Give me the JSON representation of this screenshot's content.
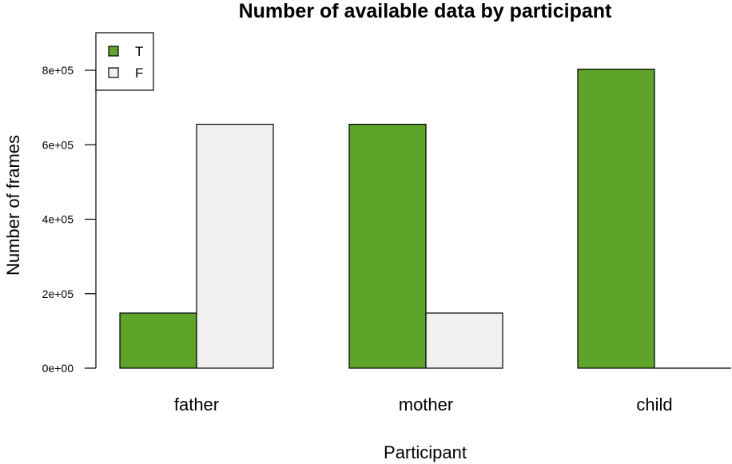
{
  "chart_data": {
    "type": "bar",
    "title": "Number of available data by participant",
    "xlabel": "Participant",
    "ylabel": "Number of frames",
    "categories": [
      "father",
      "mother",
      "child"
    ],
    "series": [
      {
        "name": "T",
        "values": [
          148000,
          655000,
          803000
        ],
        "color": "#5ea32a"
      },
      {
        "name": "F",
        "values": [
          655000,
          148000,
          0
        ],
        "color": "#f0f0f0"
      }
    ],
    "yticks": [
      0,
      200000,
      400000,
      600000,
      800000
    ],
    "ytick_labels": [
      "0e+00",
      "2e+05",
      "4e+05",
      "6e+05",
      "8e+05"
    ],
    "ylim": [
      0,
      880000
    ],
    "grid": false,
    "legend_position": "top-left"
  }
}
